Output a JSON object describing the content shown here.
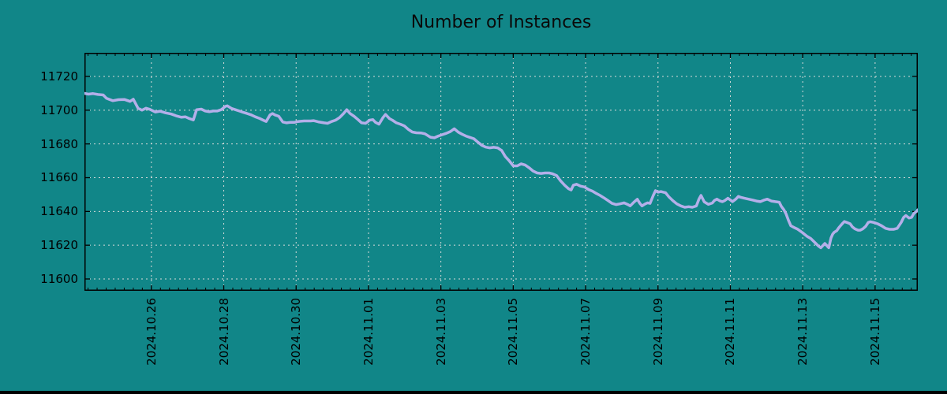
{
  "colors": {
    "background": "#118688",
    "line": "#b4afe9",
    "grid": "#d6dad9",
    "axis": "#000000",
    "text": "#000000"
  },
  "chart_data": {
    "type": "line",
    "title": "Number of Instances",
    "legend": "none",
    "grid": "dotted major gridlines, both axes",
    "x_axis": {
      "unit": "days since 2024-10-24 00:00",
      "xlim": [
        0.15,
        23.18
      ],
      "major_ticks": [
        2,
        4,
        6,
        8,
        10,
        12,
        14,
        16,
        18,
        20,
        22
      ],
      "major_tick_labels": [
        "2024.10.26",
        "2024.10.28",
        "2024.10.30",
        "2024.11.01",
        "2024.11.03",
        "2024.11.05",
        "2024.11.07",
        "2024.11.09",
        "2024.11.11",
        "2024.11.13",
        "2024.11.15"
      ],
      "minor_tick_interval": 0.25,
      "label_rotation_deg": 90
    },
    "y_axis": {
      "ylim": [
        11593,
        11734
      ],
      "ticks": [
        11600,
        11620,
        11640,
        11660,
        11680,
        11700,
        11720
      ]
    },
    "series": [
      {
        "name": "instances",
        "color": "#b4afe9",
        "points": [
          [
            0.15,
            11710
          ],
          [
            0.26,
            11709.5
          ],
          [
            0.39,
            11709.8
          ],
          [
            0.52,
            11709.3
          ],
          [
            0.67,
            11709
          ],
          [
            0.76,
            11707
          ],
          [
            0.93,
            11705.6
          ],
          [
            1.09,
            11706.2
          ],
          [
            1.26,
            11706.3
          ],
          [
            1.41,
            11705.2
          ],
          [
            1.5,
            11706.5
          ],
          [
            1.63,
            11701.2
          ],
          [
            1.74,
            11700
          ],
          [
            1.85,
            11701.2
          ],
          [
            1.96,
            11700.5
          ],
          [
            2.11,
            11698.9
          ],
          [
            2.24,
            11699.4
          ],
          [
            2.39,
            11698.4
          ],
          [
            2.55,
            11697.7
          ],
          [
            2.68,
            11696.7
          ],
          [
            2.83,
            11695.8
          ],
          [
            2.94,
            11696.1
          ],
          [
            3.05,
            11695
          ],
          [
            3.16,
            11694.2
          ],
          [
            3.25,
            11700.3
          ],
          [
            3.38,
            11700.6
          ],
          [
            3.49,
            11699.5
          ],
          [
            3.6,
            11699.1
          ],
          [
            3.71,
            11699.5
          ],
          [
            3.82,
            11699.5
          ],
          [
            3.93,
            11700.3
          ],
          [
            4.04,
            11702.2
          ],
          [
            4.1,
            11702.6
          ],
          [
            4.21,
            11701.1
          ],
          [
            4.32,
            11700.3
          ],
          [
            4.43,
            11699.5
          ],
          [
            4.54,
            11698.7
          ],
          [
            4.65,
            11698
          ],
          [
            4.76,
            11697.2
          ],
          [
            4.87,
            11696.1
          ],
          [
            4.98,
            11695.2
          ],
          [
            5.09,
            11694.1
          ],
          [
            5.17,
            11693.3
          ],
          [
            5.28,
            11697.2
          ],
          [
            5.35,
            11698
          ],
          [
            5.41,
            11697.2
          ],
          [
            5.52,
            11696.4
          ],
          [
            5.63,
            11693
          ],
          [
            5.74,
            11692.5
          ],
          [
            5.85,
            11692.8
          ],
          [
            5.96,
            11692.8
          ],
          [
            6.05,
            11693.3
          ],
          [
            6.22,
            11693.6
          ],
          [
            6.4,
            11693.6
          ],
          [
            6.48,
            11693.8
          ],
          [
            6.61,
            11693.1
          ],
          [
            6.77,
            11692.5
          ],
          [
            6.87,
            11692.2
          ],
          [
            6.98,
            11693.3
          ],
          [
            7.09,
            11694.1
          ],
          [
            7.2,
            11695.6
          ],
          [
            7.31,
            11698
          ],
          [
            7.4,
            11700.3
          ],
          [
            7.49,
            11698
          ],
          [
            7.6,
            11696.4
          ],
          [
            7.71,
            11694.4
          ],
          [
            7.81,
            11692.5
          ],
          [
            7.92,
            11692.2
          ],
          [
            8.03,
            11694.1
          ],
          [
            8.12,
            11694.4
          ],
          [
            8.19,
            11692.8
          ],
          [
            8.29,
            11691.7
          ],
          [
            8.4,
            11695.6
          ],
          [
            8.47,
            11697.5
          ],
          [
            8.58,
            11695
          ],
          [
            8.66,
            11694.1
          ],
          [
            8.77,
            11692.5
          ],
          [
            8.88,
            11691.7
          ],
          [
            8.99,
            11690.7
          ],
          [
            9.1,
            11688.6
          ],
          [
            9.21,
            11687.1
          ],
          [
            9.32,
            11686.6
          ],
          [
            9.45,
            11686.5
          ],
          [
            9.56,
            11686
          ],
          [
            9.71,
            11684
          ],
          [
            9.82,
            11683.6
          ],
          [
            9.93,
            11684.7
          ],
          [
            10.04,
            11685.5
          ],
          [
            10.15,
            11686.3
          ],
          [
            10.26,
            11687.3
          ],
          [
            10.37,
            11689
          ],
          [
            10.48,
            11687
          ],
          [
            10.58,
            11685.8
          ],
          [
            10.69,
            11684.7
          ],
          [
            10.8,
            11683.9
          ],
          [
            10.91,
            11683.1
          ],
          [
            11.02,
            11681.1
          ],
          [
            11.13,
            11679.2
          ],
          [
            11.24,
            11678.1
          ],
          [
            11.35,
            11677.7
          ],
          [
            11.46,
            11678
          ],
          [
            11.57,
            11677.7
          ],
          [
            11.68,
            11676.1
          ],
          [
            11.78,
            11672.5
          ],
          [
            11.89,
            11670
          ],
          [
            12,
            11667
          ],
          [
            12.11,
            11667
          ],
          [
            12.22,
            11668.2
          ],
          [
            12.33,
            11667.5
          ],
          [
            12.44,
            11665.9
          ],
          [
            12.55,
            11663.9
          ],
          [
            12.66,
            11662.8
          ],
          [
            12.77,
            11662.5
          ],
          [
            12.88,
            11662.8
          ],
          [
            12.99,
            11662.8
          ],
          [
            13.09,
            11662.3
          ],
          [
            13.2,
            11661.2
          ],
          [
            13.31,
            11658.1
          ],
          [
            13.42,
            11655.5
          ],
          [
            13.53,
            11653.4
          ],
          [
            13.6,
            11652.7
          ],
          [
            13.66,
            11655.5
          ],
          [
            13.75,
            11656.1
          ],
          [
            13.86,
            11655
          ],
          [
            13.97,
            11654.5
          ],
          [
            14.08,
            11653
          ],
          [
            14.19,
            11652
          ],
          [
            14.3,
            11650.6
          ],
          [
            14.4,
            11649.5
          ],
          [
            14.51,
            11648
          ],
          [
            14.62,
            11646.4
          ],
          [
            14.73,
            11644.8
          ],
          [
            14.84,
            11644.1
          ],
          [
            14.95,
            11644.5
          ],
          [
            15.06,
            11645.1
          ],
          [
            15.17,
            11644.1
          ],
          [
            15.23,
            11643.3
          ],
          [
            15.34,
            11645.6
          ],
          [
            15.43,
            11647.2
          ],
          [
            15.5,
            11644.8
          ],
          [
            15.56,
            11643.3
          ],
          [
            15.65,
            11644.5
          ],
          [
            15.71,
            11645.1
          ],
          [
            15.78,
            11644.8
          ],
          [
            15.87,
            11649.5
          ],
          [
            15.93,
            11652.3
          ],
          [
            16,
            11651.4
          ],
          [
            16.08,
            11651.8
          ],
          [
            16.15,
            11651.4
          ],
          [
            16.21,
            11651.1
          ],
          [
            16.3,
            11648.7
          ],
          [
            16.41,
            11646.4
          ],
          [
            16.52,
            11644.5
          ],
          [
            16.63,
            11643.3
          ],
          [
            16.74,
            11642.5
          ],
          [
            16.85,
            11642.8
          ],
          [
            16.95,
            11642.5
          ],
          [
            17.06,
            11643.3
          ],
          [
            17.13,
            11647.2
          ],
          [
            17.19,
            11649.5
          ],
          [
            17.28,
            11645.6
          ],
          [
            17.39,
            11644.2
          ],
          [
            17.5,
            11645
          ],
          [
            17.56,
            11646.5
          ],
          [
            17.63,
            11647.3
          ],
          [
            17.72,
            11646.2
          ],
          [
            17.78,
            11645.8
          ],
          [
            17.85,
            11646.5
          ],
          [
            17.93,
            11647.8
          ],
          [
            18,
            11646.8
          ],
          [
            18.06,
            11645.8
          ],
          [
            18.15,
            11647.3
          ],
          [
            18.22,
            11648.9
          ],
          [
            18.28,
            11648.4
          ],
          [
            18.39,
            11647.8
          ],
          [
            18.5,
            11647.3
          ],
          [
            18.61,
            11646.8
          ],
          [
            18.72,
            11646.2
          ],
          [
            18.83,
            11645.8
          ],
          [
            18.94,
            11646.8
          ],
          [
            19.02,
            11647.3
          ],
          [
            19.13,
            11646.2
          ],
          [
            19.24,
            11645.8
          ],
          [
            19.35,
            11645.5
          ],
          [
            19.41,
            11643
          ],
          [
            19.48,
            11641
          ],
          [
            19.54,
            11638.5
          ],
          [
            19.61,
            11634.5
          ],
          [
            19.67,
            11631.5
          ],
          [
            19.76,
            11630.5
          ],
          [
            19.85,
            11629.6
          ],
          [
            19.92,
            11628.6
          ],
          [
            20,
            11627.3
          ],
          [
            20.07,
            11626.1
          ],
          [
            20.13,
            11625.1
          ],
          [
            20.22,
            11624
          ],
          [
            20.28,
            11622.8
          ],
          [
            20.35,
            11621.3
          ],
          [
            20.44,
            11619.4
          ],
          [
            20.5,
            11618.5
          ],
          [
            20.61,
            11621
          ],
          [
            20.72,
            11618.5
          ],
          [
            20.78,
            11624.3
          ],
          [
            20.83,
            11626.6
          ],
          [
            20.87,
            11627.7
          ],
          [
            20.94,
            11628.6
          ],
          [
            21,
            11630.4
          ],
          [
            21.09,
            11632.7
          ],
          [
            21.15,
            11634
          ],
          [
            21.22,
            11633.5
          ],
          [
            21.31,
            11632.7
          ],
          [
            21.37,
            11630.9
          ],
          [
            21.44,
            11629.7
          ],
          [
            21.53,
            11628.9
          ],
          [
            21.59,
            11628.9
          ],
          [
            21.66,
            11629.7
          ],
          [
            21.74,
            11631.2
          ],
          [
            21.81,
            11633.5
          ],
          [
            21.87,
            11633.9
          ],
          [
            21.96,
            11633.5
          ],
          [
            22.07,
            11632.7
          ],
          [
            22.18,
            11631.5
          ],
          [
            22.29,
            11630
          ],
          [
            22.4,
            11629.4
          ],
          [
            22.51,
            11629.4
          ],
          [
            22.61,
            11630
          ],
          [
            22.72,
            11633.5
          ],
          [
            22.79,
            11636.5
          ],
          [
            22.85,
            11637.6
          ],
          [
            22.94,
            11636.1
          ],
          [
            23.01,
            11636.5
          ],
          [
            23.07,
            11638.8
          ],
          [
            23.16,
            11640.3
          ],
          [
            23.18,
            11641
          ]
        ]
      }
    ]
  }
}
